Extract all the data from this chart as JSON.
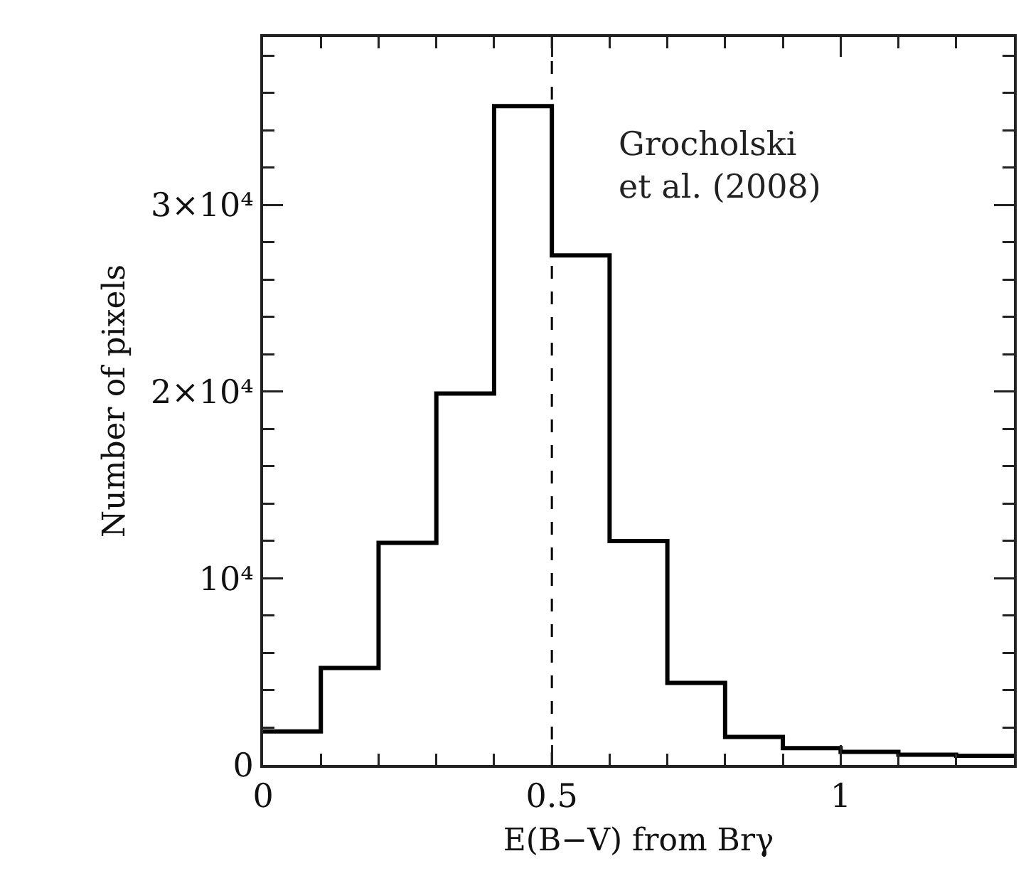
{
  "chart_data": {
    "type": "histogram",
    "xlabel": "E(B−V) from Brγ",
    "ylabel": "Number of pixels",
    "bins": [
      0,
      0.1,
      0.2,
      0.3,
      0.4,
      0.5,
      0.6,
      0.7,
      0.8,
      0.9,
      1.0,
      1.1,
      1.2,
      1.3
    ],
    "values": [
      1800,
      5200,
      11900,
      19900,
      35300,
      27300,
      12000,
      4400,
      1500,
      900,
      700,
      550,
      500
    ],
    "color": "#000000",
    "xlim": [
      0,
      1.3
    ],
    "xticks": [
      0,
      0.5,
      1
    ],
    "ylim": [
      0,
      39000
    ],
    "yticks": [
      0,
      {
        "value": 10000,
        "label": "10⁴"
      },
      {
        "value": 20000,
        "label": "2×10⁴"
      },
      {
        "value": 30000,
        "label": "3×10⁴"
      }
    ],
    "ref_lines": [
      {
        "axis": "x",
        "value": 0.5,
        "line_style": "dashed",
        "color": "#000000"
      }
    ],
    "annotations": [
      "Grocholski\net al. (2008)"
    ]
  }
}
